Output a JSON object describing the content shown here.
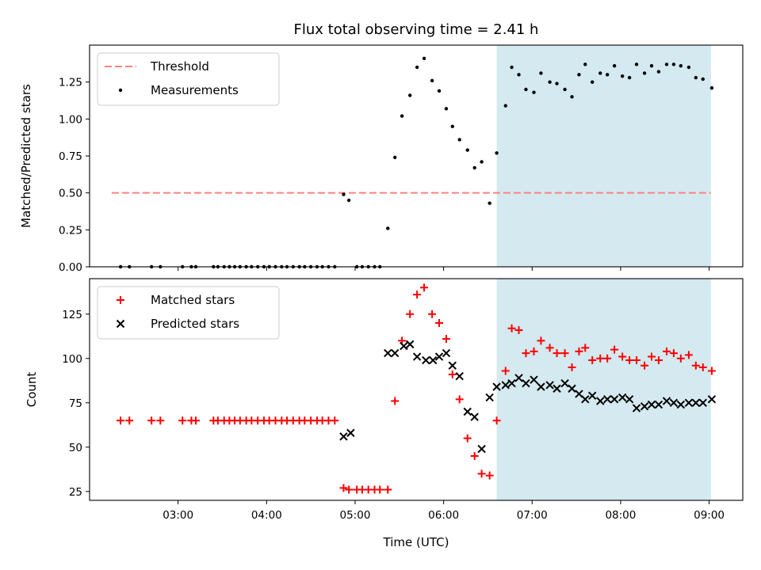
{
  "chart_data": [
    {
      "type": "scatter",
      "title": "Flux total observing time = 2.41 h",
      "xlabel": "",
      "ylabel": "Matched/Predicted stars",
      "ylim": [
        0,
        1.5
      ],
      "yticks": [
        "0.00",
        "0.25",
        "0.50",
        "0.75",
        "1.00",
        "1.25"
      ],
      "xlim": [
        2.0,
        9.38
      ],
      "legend_position": "top-left",
      "threshold": {
        "name": "Threshold",
        "value": 0.5,
        "x_range": [
          2.25,
          9.02
        ],
        "color": "#ff8080",
        "style": "dashed"
      },
      "shaded_region": {
        "x_range": [
          6.6,
          9.02
        ],
        "color": "#d4e9f0"
      },
      "series": [
        {
          "name": "Measurements",
          "color": "#000000",
          "marker": "dot",
          "points": [
            [
              2.35,
              0.0
            ],
            [
              2.45,
              0.0
            ],
            [
              2.7,
              0.0
            ],
            [
              2.8,
              0.0
            ],
            [
              3.05,
              0.0
            ],
            [
              3.15,
              0.0
            ],
            [
              3.2,
              0.0
            ],
            [
              3.4,
              0.0
            ],
            [
              3.45,
              0.0
            ],
            [
              3.52,
              0.0
            ],
            [
              3.58,
              0.0
            ],
            [
              3.64,
              0.0
            ],
            [
              3.7,
              0.0
            ],
            [
              3.77,
              0.0
            ],
            [
              3.83,
              0.0
            ],
            [
              3.9,
              0.0
            ],
            [
              3.97,
              0.0
            ],
            [
              4.03,
              0.0
            ],
            [
              4.1,
              0.0
            ],
            [
              4.17,
              0.0
            ],
            [
              4.23,
              0.0
            ],
            [
              4.3,
              0.0
            ],
            [
              4.37,
              0.0
            ],
            [
              4.43,
              0.0
            ],
            [
              4.5,
              0.0
            ],
            [
              4.57,
              0.0
            ],
            [
              4.63,
              0.0
            ],
            [
              4.7,
              0.0
            ],
            [
              4.77,
              0.0
            ],
            [
              4.87,
              0.49
            ],
            [
              4.93,
              0.45
            ],
            [
              5.02,
              0.0
            ],
            [
              5.08,
              0.0
            ],
            [
              5.15,
              0.0
            ],
            [
              5.22,
              0.0
            ],
            [
              5.28,
              0.0
            ],
            [
              5.37,
              0.26
            ],
            [
              5.45,
              0.74
            ],
            [
              5.53,
              1.02
            ],
            [
              5.62,
              1.16
            ],
            [
              5.7,
              1.35
            ],
            [
              5.78,
              1.41
            ],
            [
              5.87,
              1.26
            ],
            [
              5.95,
              1.19
            ],
            [
              6.03,
              1.07
            ],
            [
              6.1,
              0.95
            ],
            [
              6.18,
              0.86
            ],
            [
              6.27,
              0.79
            ],
            [
              6.35,
              0.67
            ],
            [
              6.43,
              0.71
            ],
            [
              6.52,
              0.43
            ],
            [
              6.6,
              0.77
            ],
            [
              6.7,
              1.09
            ],
            [
              6.77,
              1.35
            ],
            [
              6.85,
              1.3
            ],
            [
              6.93,
              1.2
            ],
            [
              7.02,
              1.18
            ],
            [
              7.1,
              1.31
            ],
            [
              7.2,
              1.25
            ],
            [
              7.28,
              1.24
            ],
            [
              7.37,
              1.2
            ],
            [
              7.45,
              1.15
            ],
            [
              7.53,
              1.3
            ],
            [
              7.6,
              1.37
            ],
            [
              7.68,
              1.25
            ],
            [
              7.77,
              1.31
            ],
            [
              7.85,
              1.3
            ],
            [
              7.93,
              1.36
            ],
            [
              8.02,
              1.29
            ],
            [
              8.1,
              1.28
            ],
            [
              8.18,
              1.37
            ],
            [
              8.27,
              1.31
            ],
            [
              8.35,
              1.36
            ],
            [
              8.43,
              1.32
            ],
            [
              8.52,
              1.37
            ],
            [
              8.6,
              1.37
            ],
            [
              8.68,
              1.36
            ],
            [
              8.77,
              1.35
            ],
            [
              8.85,
              1.28
            ],
            [
              8.93,
              1.27
            ],
            [
              9.03,
              1.21
            ]
          ]
        }
      ]
    },
    {
      "type": "scatter",
      "title": "",
      "xlabel": "Time (UTC)",
      "ylabel": "Count",
      "ylim": [
        20,
        145
      ],
      "yticks": [
        "25",
        "50",
        "75",
        "100",
        "125"
      ],
      "xlim": [
        2.0,
        9.38
      ],
      "xticks": [
        "03:00",
        "04:00",
        "05:00",
        "06:00",
        "07:00",
        "08:00",
        "09:00"
      ],
      "legend_position": "top-left",
      "shaded_region": {
        "x_range": [
          6.6,
          9.02
        ],
        "color": "#d4e9f0"
      },
      "series": [
        {
          "name": "Matched stars",
          "color": "#ff0000",
          "marker": "plus",
          "points": [
            [
              2.35,
              65
            ],
            [
              2.45,
              65
            ],
            [
              2.7,
              65
            ],
            [
              2.8,
              65
            ],
            [
              3.05,
              65
            ],
            [
              3.15,
              65
            ],
            [
              3.2,
              65
            ],
            [
              3.4,
              65
            ],
            [
              3.45,
              65
            ],
            [
              3.52,
              65
            ],
            [
              3.58,
              65
            ],
            [
              3.64,
              65
            ],
            [
              3.7,
              65
            ],
            [
              3.77,
              65
            ],
            [
              3.83,
              65
            ],
            [
              3.9,
              65
            ],
            [
              3.97,
              65
            ],
            [
              4.03,
              65
            ],
            [
              4.1,
              65
            ],
            [
              4.17,
              65
            ],
            [
              4.23,
              65
            ],
            [
              4.3,
              65
            ],
            [
              4.37,
              65
            ],
            [
              4.43,
              65
            ],
            [
              4.5,
              65
            ],
            [
              4.57,
              65
            ],
            [
              4.63,
              65
            ],
            [
              4.7,
              65
            ],
            [
              4.77,
              65
            ],
            [
              4.87,
              27
            ],
            [
              4.93,
              26
            ],
            [
              5.02,
              26
            ],
            [
              5.08,
              26
            ],
            [
              5.15,
              26
            ],
            [
              5.22,
              26
            ],
            [
              5.28,
              26
            ],
            [
              5.37,
              26
            ],
            [
              5.45,
              76
            ],
            [
              5.53,
              110
            ],
            [
              5.62,
              125
            ],
            [
              5.7,
              136
            ],
            [
              5.78,
              140
            ],
            [
              5.87,
              125
            ],
            [
              5.95,
              120
            ],
            [
              6.03,
              111
            ],
            [
              6.1,
              91
            ],
            [
              6.18,
              77
            ],
            [
              6.27,
              55
            ],
            [
              6.35,
              45
            ],
            [
              6.43,
              35
            ],
            [
              6.52,
              34
            ],
            [
              6.6,
              65
            ],
            [
              6.7,
              93
            ],
            [
              6.77,
              117
            ],
            [
              6.85,
              116
            ],
            [
              6.93,
              103
            ],
            [
              7.02,
              104
            ],
            [
              7.1,
              110
            ],
            [
              7.2,
              106
            ],
            [
              7.28,
              103
            ],
            [
              7.37,
              103
            ],
            [
              7.45,
              95
            ],
            [
              7.53,
              104
            ],
            [
              7.6,
              106
            ],
            [
              7.68,
              99
            ],
            [
              7.77,
              100
            ],
            [
              7.85,
              100
            ],
            [
              7.93,
              105
            ],
            [
              8.02,
              101
            ],
            [
              8.1,
              99
            ],
            [
              8.18,
              99
            ],
            [
              8.27,
              96
            ],
            [
              8.35,
              101
            ],
            [
              8.43,
              99
            ],
            [
              8.52,
              104
            ],
            [
              8.6,
              103
            ],
            [
              8.68,
              100
            ],
            [
              8.77,
              102
            ],
            [
              8.85,
              96
            ],
            [
              8.93,
              95
            ],
            [
              9.03,
              93
            ]
          ]
        },
        {
          "name": "Predicted stars",
          "color": "#000000",
          "marker": "x",
          "points": [
            [
              4.87,
              56
            ],
            [
              4.95,
              58
            ],
            [
              5.37,
              103
            ],
            [
              5.45,
              103
            ],
            [
              5.55,
              107
            ],
            [
              5.62,
              108
            ],
            [
              5.7,
              101
            ],
            [
              5.8,
              99
            ],
            [
              5.88,
              99
            ],
            [
              5.95,
              101
            ],
            [
              6.03,
              103
            ],
            [
              6.1,
              96
            ],
            [
              6.18,
              90
            ],
            [
              6.27,
              70
            ],
            [
              6.35,
              67
            ],
            [
              6.43,
              49
            ],
            [
              6.52,
              78
            ],
            [
              6.6,
              84
            ],
            [
              6.7,
              85
            ],
            [
              6.77,
              86
            ],
            [
              6.85,
              89
            ],
            [
              6.93,
              86
            ],
            [
              7.02,
              88
            ],
            [
              7.1,
              84
            ],
            [
              7.2,
              85
            ],
            [
              7.28,
              83
            ],
            [
              7.37,
              86
            ],
            [
              7.45,
              83
            ],
            [
              7.53,
              80
            ],
            [
              7.6,
              77
            ],
            [
              7.68,
              79
            ],
            [
              7.77,
              76
            ],
            [
              7.85,
              77
            ],
            [
              7.93,
              77
            ],
            [
              8.02,
              78
            ],
            [
              8.1,
              77
            ],
            [
              8.18,
              72
            ],
            [
              8.27,
              73
            ],
            [
              8.35,
              74
            ],
            [
              8.43,
              74
            ],
            [
              8.52,
              76
            ],
            [
              8.6,
              75
            ],
            [
              8.68,
              74
            ],
            [
              8.77,
              75
            ],
            [
              8.85,
              75
            ],
            [
              8.93,
              75
            ],
            [
              9.03,
              77
            ]
          ]
        }
      ]
    }
  ]
}
